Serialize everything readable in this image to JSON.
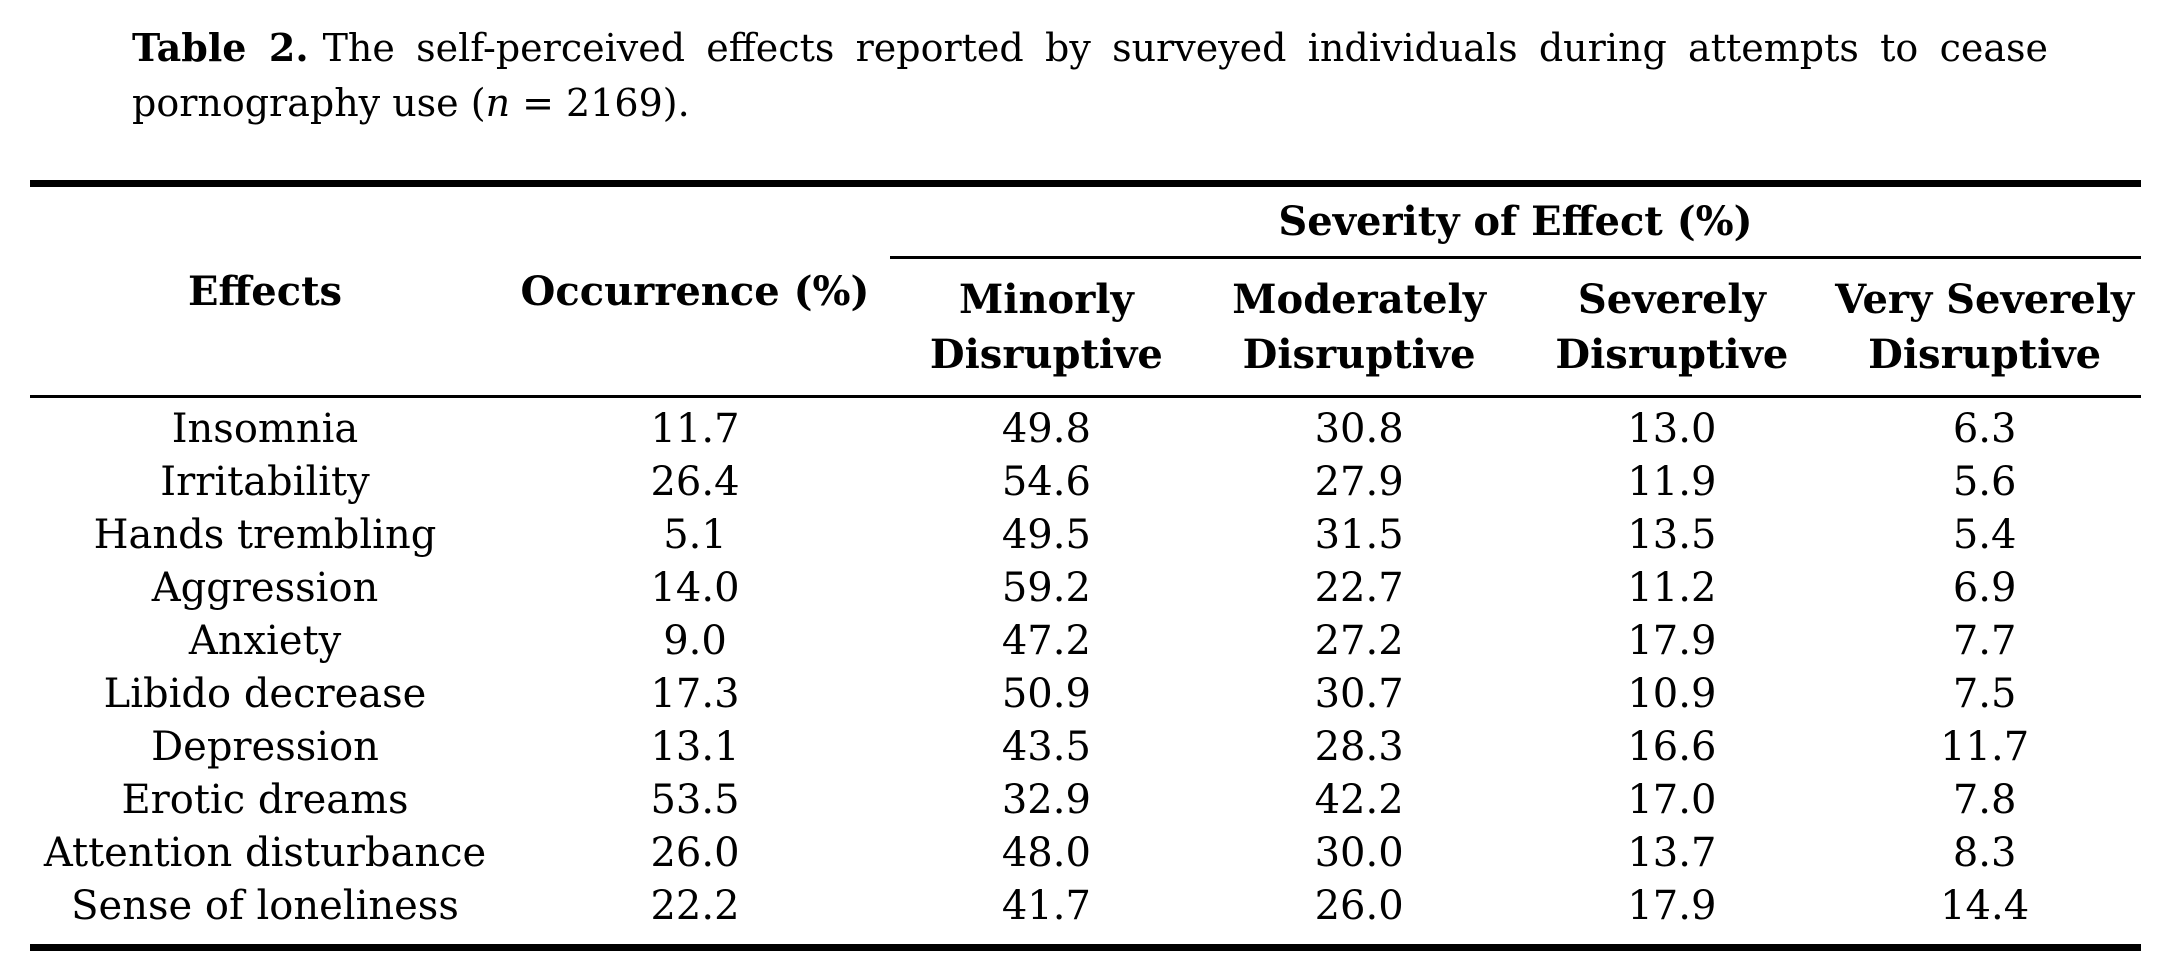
{
  "caption": {
    "label": "Table 2.",
    "line1_rest": "The self-perceived effects reported by surveyed individuals during attempts to cease",
    "line2_prefix": "pornography use (",
    "line2_n": "n",
    "line2_suffix": " = 2169)."
  },
  "table": {
    "columns": {
      "effects": "Effects",
      "occurrence": "Occurrence (%)",
      "severity_group": "Severity of Effect (%)",
      "severity_levels": [
        {
          "line1": "Minorly",
          "line2": "Disruptive"
        },
        {
          "line1": "Moderately",
          "line2": "Disruptive"
        },
        {
          "line1": "Severely",
          "line2": "Disruptive"
        },
        {
          "line1": "Very Severely",
          "line2": "Disruptive"
        }
      ]
    },
    "rows": [
      {
        "effect": "Insomnia",
        "occurrence": "11.7",
        "severity": [
          "49.8",
          "30.8",
          "13.0",
          "6.3"
        ]
      },
      {
        "effect": "Irritability",
        "occurrence": "26.4",
        "severity": [
          "54.6",
          "27.9",
          "11.9",
          "5.6"
        ]
      },
      {
        "effect": "Hands trembling",
        "occurrence": "5.1",
        "severity": [
          "49.5",
          "31.5",
          "13.5",
          "5.4"
        ]
      },
      {
        "effect": "Aggression",
        "occurrence": "14.0",
        "severity": [
          "59.2",
          "22.7",
          "11.2",
          "6.9"
        ]
      },
      {
        "effect": "Anxiety",
        "occurrence": "9.0",
        "severity": [
          "47.2",
          "27.2",
          "17.9",
          "7.7"
        ]
      },
      {
        "effect": "Libido decrease",
        "occurrence": "17.3",
        "severity": [
          "50.9",
          "30.7",
          "10.9",
          "7.5"
        ]
      },
      {
        "effect": "Depression",
        "occurrence": "13.1",
        "severity": [
          "43.5",
          "28.3",
          "16.6",
          "11.7"
        ]
      },
      {
        "effect": "Erotic dreams",
        "occurrence": "53.5",
        "severity": [
          "32.9",
          "42.2",
          "17.0",
          "7.8"
        ]
      },
      {
        "effect": "Attention disturbance",
        "occurrence": "26.0",
        "severity": [
          "48.0",
          "30.0",
          "13.7",
          "8.3"
        ]
      },
      {
        "effect": "Sense of loneliness",
        "occurrence": "22.2",
        "severity": [
          "41.7",
          "26.0",
          "17.9",
          "14.4"
        ]
      }
    ]
  },
  "colors": {
    "text": "#000000",
    "background": "#ffffff",
    "rule": "#000000"
  }
}
